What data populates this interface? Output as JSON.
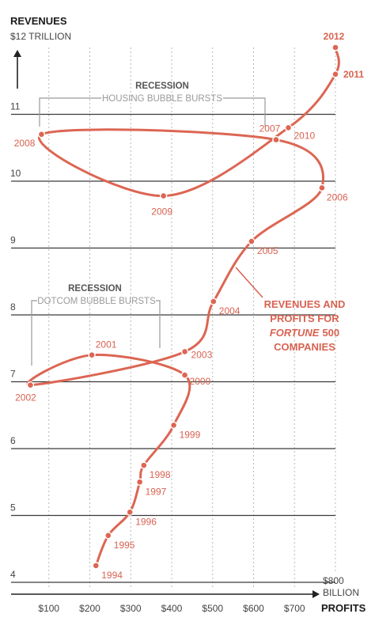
{
  "chart_data": {
    "type": "line",
    "title": "REVENUES",
    "ylabel": "REVENUES",
    "yunit": "$12 TRILLION",
    "xlabel": "PROFITS",
    "xunit_line1": "$800",
    "xunit_line2": "BILLION",
    "xlim": [
      0,
      800
    ],
    "ylim": [
      3.9,
      12.5
    ],
    "grid": true,
    "x_ticks": [
      {
        "value": 100,
        "label": "$100"
      },
      {
        "value": 200,
        "label": "$200"
      },
      {
        "value": 300,
        "label": "$300"
      },
      {
        "value": 400,
        "label": "$400"
      },
      {
        "value": 500,
        "label": "$500"
      },
      {
        "value": 600,
        "label": "$600"
      },
      {
        "value": 700,
        "label": "$700"
      }
    ],
    "y_ticks": [
      {
        "value": 4,
        "label": "4"
      },
      {
        "value": 5,
        "label": "5"
      },
      {
        "value": 6,
        "label": "6"
      },
      {
        "value": 7,
        "label": "7"
      },
      {
        "value": 8,
        "label": "8"
      },
      {
        "value": 9,
        "label": "9"
      },
      {
        "value": 10,
        "label": "10"
      },
      {
        "value": 11,
        "label": "11"
      }
    ],
    "series": [
      {
        "points": [
          {
            "year": "1994",
            "x": 215,
            "y": 4.25,
            "label_side": "right"
          },
          {
            "year": "1995",
            "x": 245,
            "y": 4.7,
            "label_side": "right"
          },
          {
            "year": "1996",
            "x": 298,
            "y": 5.05,
            "label_side": "right"
          },
          {
            "year": "1997",
            "x": 322,
            "y": 5.5,
            "label_side": "right"
          },
          {
            "year": "1998",
            "x": 332,
            "y": 5.75,
            "label_side": "right"
          },
          {
            "year": "1999",
            "x": 405,
            "y": 6.35,
            "label_side": "right"
          },
          {
            "year": "2000",
            "x": 432,
            "y": 7.1,
            "label_side": "right"
          },
          {
            "year": "2001",
            "x": 205,
            "y": 7.4,
            "label_side": "above"
          },
          {
            "year": "2002",
            "x": 55,
            "y": 6.95,
            "label_side": "below-left"
          },
          {
            "year": "2003",
            "x": 432,
            "y": 7.45,
            "label_side": "right"
          },
          {
            "year": "2004",
            "x": 502,
            "y": 8.2,
            "label_side": "right"
          },
          {
            "year": "2005",
            "x": 595,
            "y": 9.1,
            "label_side": "right"
          },
          {
            "year": "2006",
            "x": 767,
            "y": 9.9,
            "label_side": "right"
          },
          {
            "year": "2007",
            "x": 655,
            "y": 10.62,
            "label_side": "above"
          },
          {
            "year": "2008",
            "x": 82,
            "y": 10.7,
            "label_side": "left"
          },
          {
            "year": "2009",
            "x": 380,
            "y": 9.78,
            "label_side": "below"
          },
          {
            "year": "2010",
            "x": 685,
            "y": 10.8,
            "label_side": "right"
          },
          {
            "year": "2011",
            "x": 800,
            "y": 11.6,
            "label_side": "right"
          },
          {
            "year": "2012",
            "x": 800,
            "y": 12.0,
            "label_side": "above"
          }
        ]
      }
    ],
    "annotations": [
      {
        "id": "recession_2008",
        "title": "RECESSION",
        "subtitle": "HOUSING BUBBLE BURSTS"
      },
      {
        "id": "recession_2001",
        "title": "RECESSION",
        "subtitle": "DOTCOM BUBBLE BURSTS"
      }
    ],
    "callout": {
      "line1": "REVENUES AND",
      "line2": "PROFITS FOR",
      "line3_italic": "FORTUNE",
      "line3_rest": "500",
      "line4": "COMPANIES"
    },
    "colors": {
      "series": "#dc6653",
      "grid": "#b8b8b8",
      "axis": "#222222"
    }
  }
}
